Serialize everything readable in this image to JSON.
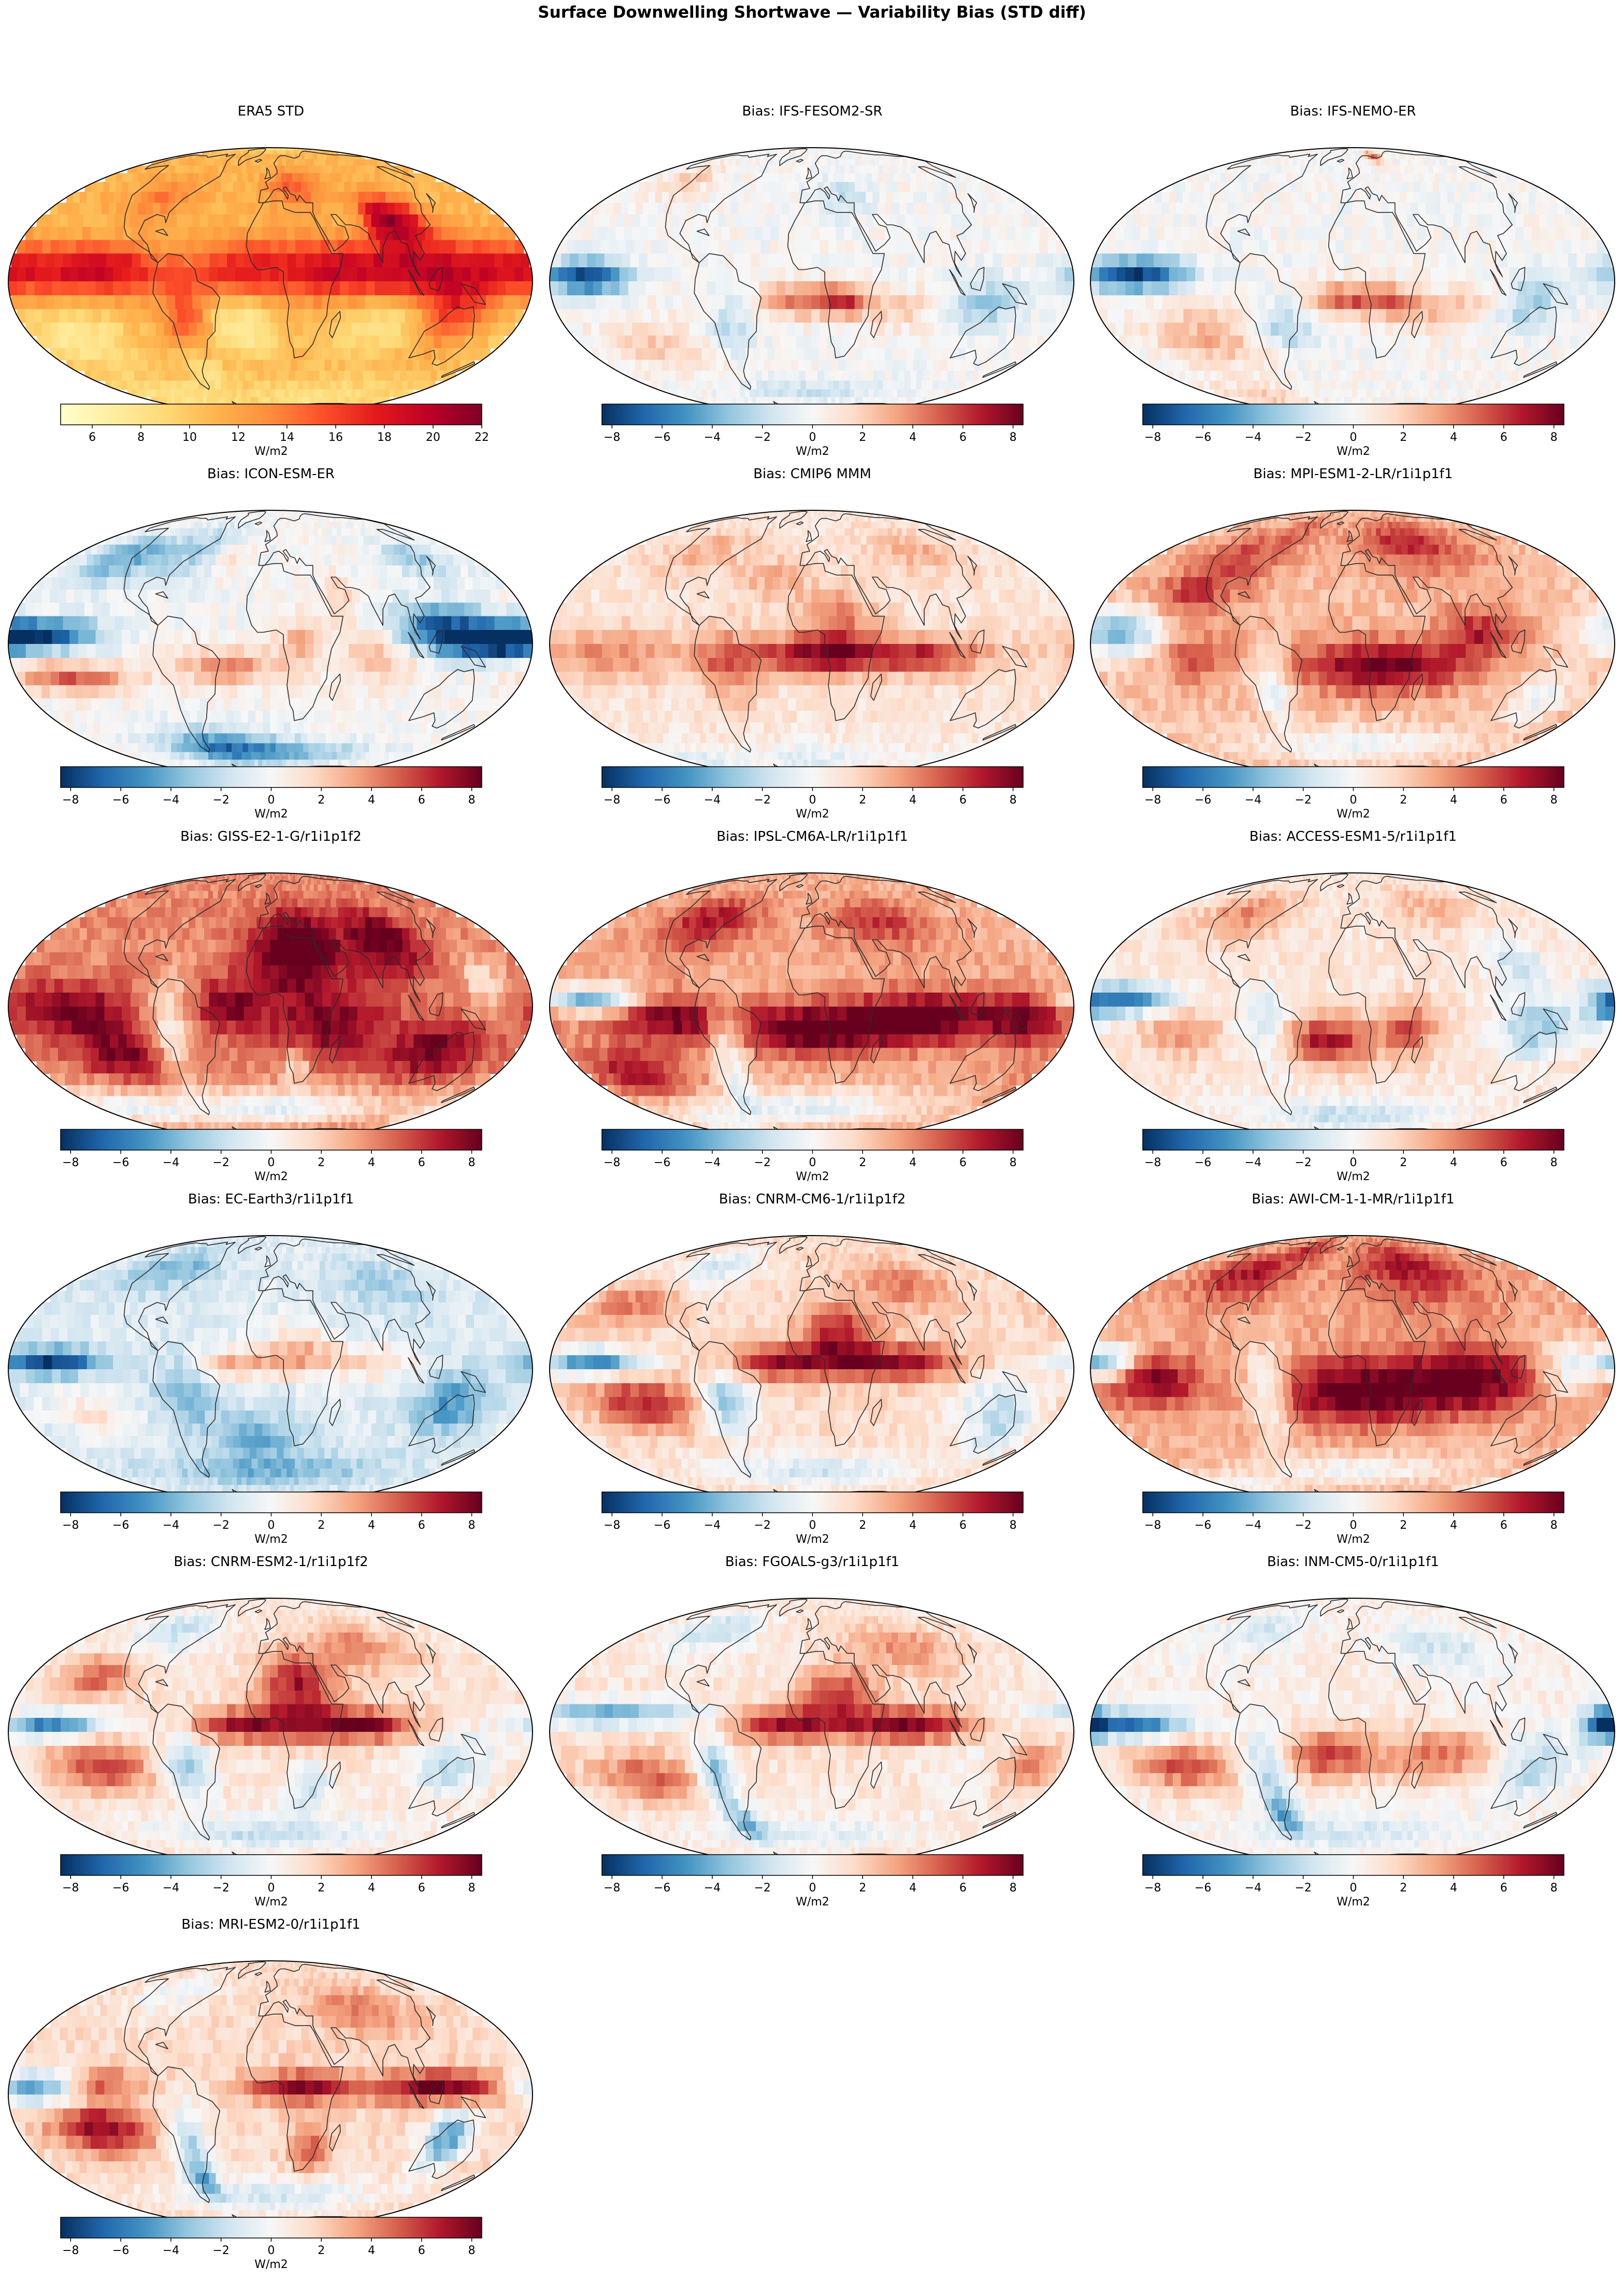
{
  "figure": {
    "title": "Surface Downwelling Shortwave — Variability Bias (STD diff)"
  },
  "colorbars": {
    "std": {
      "ticks": [
        "6",
        "8",
        "10",
        "12",
        "14",
        "16",
        "18",
        "20",
        "22"
      ],
      "tick_values": [
        6,
        8,
        10,
        12,
        14,
        16,
        18,
        20,
        22
      ],
      "range": [
        4.7,
        22
      ],
      "label": "W/m2",
      "cmap_colors": [
        "#ffffcc",
        "#ffeda0",
        "#fed976",
        "#feb24c",
        "#fd8d3c",
        "#fc4e2a",
        "#e31a1c",
        "#bd0026",
        "#800026"
      ]
    },
    "bias": {
      "ticks": [
        "−8",
        "−6",
        "−4",
        "−2",
        "0",
        "2",
        "4",
        "6",
        "8"
      ],
      "tick_values": [
        -8,
        -6,
        -4,
        -2,
        0,
        2,
        4,
        6,
        8
      ],
      "range": [
        -8.4,
        8.4
      ],
      "label": "W/m2",
      "cmap_colors": [
        "#053061",
        "#2166ac",
        "#4393c3",
        "#92c5de",
        "#d1e5f0",
        "#f7f7f7",
        "#fddbc7",
        "#f4a582",
        "#d6604d",
        "#b2182b",
        "#67001f"
      ]
    }
  },
  "panels": [
    {
      "title": "ERA5 STD",
      "colorbar": "std"
    },
    {
      "title": "Bias: IFS-FESOM2-SR",
      "colorbar": "bias"
    },
    {
      "title": "Bias: IFS-NEMO-ER",
      "colorbar": "bias"
    },
    {
      "title": "Bias: ICON-ESM-ER",
      "colorbar": "bias"
    },
    {
      "title": "Bias: CMIP6 MMM",
      "colorbar": "bias"
    },
    {
      "title": "Bias: MPI-ESM1-2-LR/r1i1p1f1",
      "colorbar": "bias"
    },
    {
      "title": "Bias: GISS-E2-1-G/r1i1p1f2",
      "colorbar": "bias"
    },
    {
      "title": "Bias: IPSL-CM6A-LR/r1i1p1f1",
      "colorbar": "bias"
    },
    {
      "title": "Bias: ACCESS-ESM1-5/r1i1p1f1",
      "colorbar": "bias"
    },
    {
      "title": "Bias: EC-Earth3/r1i1p1f1",
      "colorbar": "bias"
    },
    {
      "title": "Bias: CNRM-CM6-1/r1i1p1f2",
      "colorbar": "bias"
    },
    {
      "title": "Bias: AWI-CM-1-1-MR/r1i1p1f1",
      "colorbar": "bias"
    },
    {
      "title": "Bias: CNRM-ESM2-1/r1i1p1f2",
      "colorbar": "bias"
    },
    {
      "title": "Bias: FGOALS-g3/r1i1p1f1",
      "colorbar": "bias"
    },
    {
      "title": "Bias: INM-CM5-0/r1i1p1f1",
      "colorbar": "bias"
    },
    {
      "title": "Bias: MRI-ESM2-0/r1i1p1f1",
      "colorbar": "bias"
    }
  ]
}
